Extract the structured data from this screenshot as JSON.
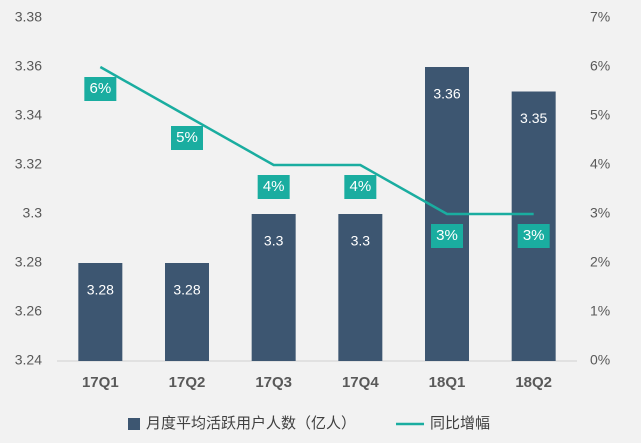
{
  "chart_data": {
    "type": "bar",
    "categories": [
      "17Q1",
      "17Q2",
      "17Q3",
      "17Q4",
      "18Q1",
      "18Q2"
    ],
    "series": [
      {
        "name": "月度平均活跃用户人数（亿人）",
        "color": "#3d5671",
        "values": [
          3.28,
          3.28,
          3.3,
          3.3,
          3.36,
          3.35
        ]
      },
      {
        "name": "同比增幅",
        "type": "line",
        "axis": "y2",
        "color": "#1aada0",
        "values": [
          6,
          5,
          4,
          4,
          3,
          3
        ],
        "value_labels": [
          "6%",
          "5%",
          "4%",
          "4%",
          "3%",
          "3%"
        ]
      }
    ],
    "ylim": [
      3.24,
      3.38
    ],
    "yticks": [
      3.24,
      3.26,
      3.28,
      3.3,
      3.32,
      3.34,
      3.36,
      3.38
    ],
    "y2lim": [
      0,
      7
    ],
    "y2ticks": [
      {
        "value": 0,
        "label": "0%"
      },
      {
        "value": 1,
        "label": "1%"
      },
      {
        "value": 2,
        "label": "2%"
      },
      {
        "value": 3,
        "label": "3%"
      },
      {
        "value": 4,
        "label": "4%"
      },
      {
        "value": 5,
        "label": "5%"
      },
      {
        "value": 6,
        "label": "6%"
      },
      {
        "value": 7,
        "label": "7%"
      }
    ],
    "grid": false,
    "legend": "bottom"
  }
}
